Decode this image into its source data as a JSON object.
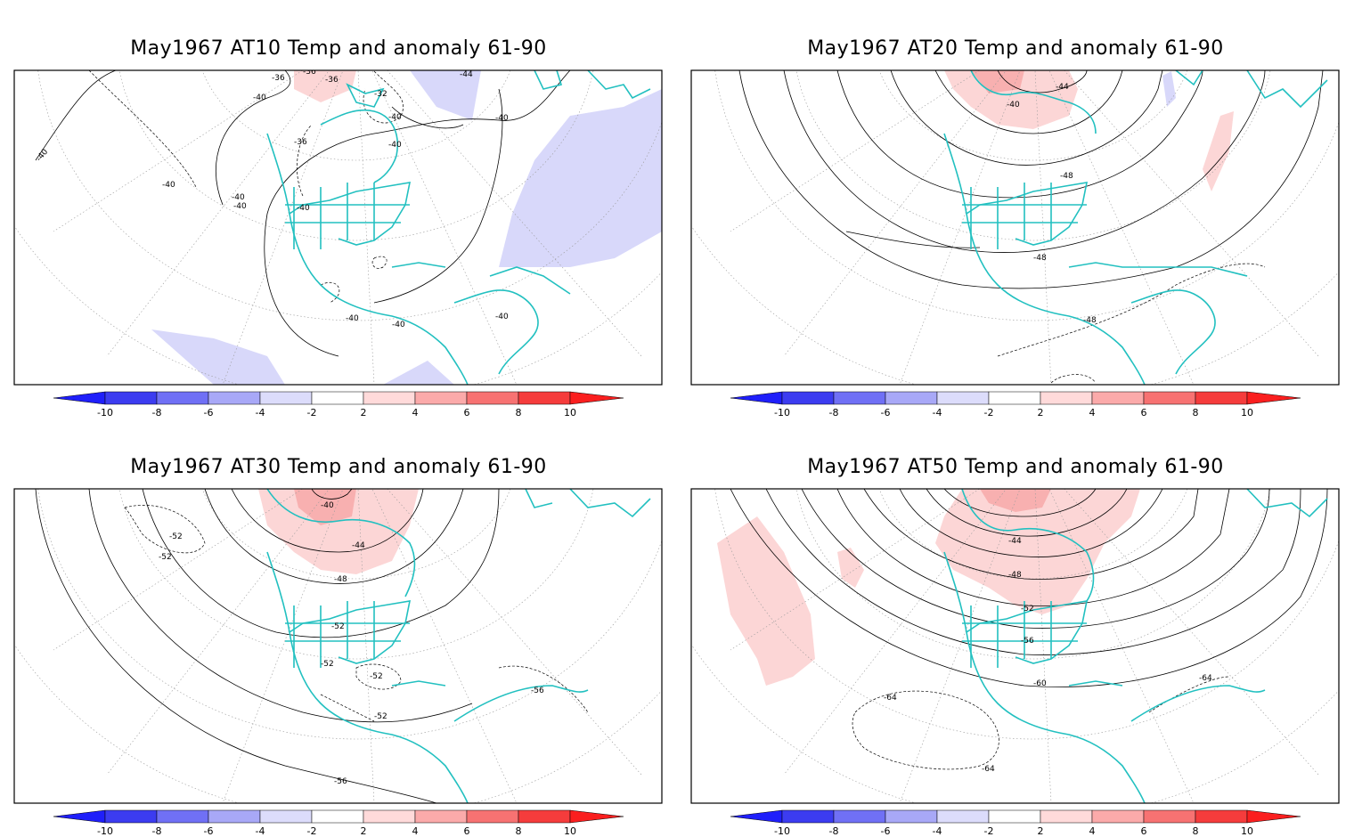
{
  "panels": [
    {
      "title": "May1967 AT10 Temp and anomaly 61-90",
      "contour_labels": [
        "-36",
        "-36",
        "-36",
        "-40",
        "-44",
        "-32",
        "-40",
        "-40",
        "-40",
        "-40",
        "-36",
        "-40",
        "-40",
        "-40",
        "-40",
        "-40",
        "-40",
        "-40"
      ]
    },
    {
      "title": "May1967 AT20 Temp and anomaly 61-90",
      "contour_labels": [
        "-44",
        "-40",
        "-48",
        "-48",
        "-48"
      ]
    },
    {
      "title": "May1967 AT30 Temp and anomaly 61-90",
      "contour_labels": [
        "-40",
        "-52",
        "-52",
        "-44",
        "-48",
        "-52",
        "-52",
        "-52",
        "-52",
        "-56",
        "-56"
      ]
    },
    {
      "title": "May1967 AT50 Temp and anomaly 61-90",
      "contour_labels": [
        "-44",
        "-48",
        "-52",
        "-56",
        "-60",
        "-64",
        "-64",
        "-64"
      ]
    }
  ],
  "colorbar": {
    "labels": [
      "-10",
      "-8",
      "-6",
      "-4",
      "-2",
      "2",
      "4",
      "6",
      "8",
      "10"
    ],
    "colors": [
      "#1f1ffa",
      "#3c3cf0",
      "#7070f5",
      "#a8a8f7",
      "#dcdcfb",
      "#ffffff",
      "#ffdada",
      "#fbaaaa",
      "#f77272",
      "#f53c3c",
      "#fa1f1f"
    ]
  },
  "colors": {
    "coastline": "#22c0c0",
    "anomaly_neg": "#d8d8fa",
    "anomaly_pos": "#fcd6d6",
    "anomaly_pos_strong": "#f8b0b0",
    "contour": "#000000",
    "grid": "#9a9a9a"
  }
}
